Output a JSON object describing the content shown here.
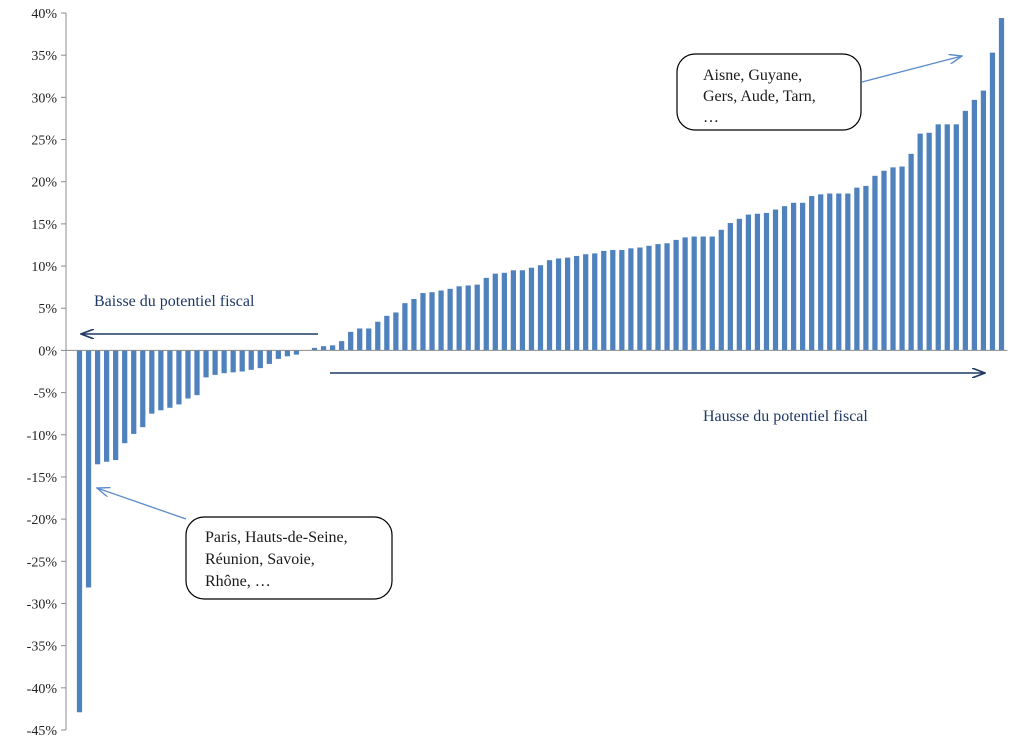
{
  "chart_data": {
    "type": "bar",
    "ylim": [
      -45,
      40
    ],
    "y_ticks": [
      40,
      35,
      30,
      25,
      20,
      15,
      10,
      5,
      0,
      -5,
      -10,
      -15,
      -20,
      -25,
      -30,
      -35,
      -40,
      -45
    ],
    "y_tick_labels": [
      "40%",
      "35%",
      "30%",
      "25%",
      "20%",
      "15%",
      "10%",
      "5%",
      "0%",
      "-5%",
      "-10%",
      "-15%",
      "-20%",
      "-25%",
      "-30%",
      "-35%",
      "-40%",
      "-45%"
    ],
    "bar_color": "#4f81bd",
    "values": [
      -42.9,
      -28.1,
      -13.5,
      -13.2,
      -13.0,
      -11.0,
      -9.9,
      -9.1,
      -7.5,
      -7.1,
      -6.8,
      -6.4,
      -5.7,
      -5.3,
      -3.2,
      -2.9,
      -2.7,
      -2.6,
      -2.5,
      -2.3,
      -2.1,
      -1.6,
      -1.0,
      -0.7,
      -0.5,
      0.0,
      0.3,
      0.5,
      0.6,
      1.1,
      2.2,
      2.6,
      2.6,
      3.4,
      4.1,
      4.5,
      5.6,
      6.1,
      6.8,
      6.9,
      7.1,
      7.3,
      7.6,
      7.7,
      7.8,
      8.6,
      9.1,
      9.2,
      9.5,
      9.5,
      9.8,
      10.1,
      10.7,
      10.9,
      11.0,
      11.2,
      11.4,
      11.5,
      11.8,
      11.9,
      11.9,
      12.1,
      12.2,
      12.4,
      12.6,
      12.7,
      13.1,
      13.4,
      13.5,
      13.5,
      13.5,
      14.3,
      15.1,
      15.6,
      16.1,
      16.2,
      16.3,
      16.7,
      17.1,
      17.5,
      17.5,
      18.3,
      18.5,
      18.6,
      18.6,
      18.6,
      19.3,
      19.5,
      20.7,
      21.3,
      21.7,
      21.8,
      23.3,
      25.7,
      25.8,
      26.8,
      26.8,
      26.8,
      28.4,
      29.7,
      30.8,
      35.3,
      39.4
    ],
    "annotations": [
      {
        "lines": [
          "Aisne, Guyane,",
          "Gers, Aude, Tarn,",
          "…"
        ]
      },
      {
        "lines": [
          "Paris, Hauts-de-Seine,",
          "Réunion, Savoie,",
          "Rhône, …"
        ]
      }
    ],
    "direction_labels": {
      "left": "Baisse du potentiel fiscal",
      "right": "Hausse du potentiel fiscal"
    },
    "arrow_color": "#1f3864",
    "callout_arrow_color": "#5b8cc9"
  }
}
